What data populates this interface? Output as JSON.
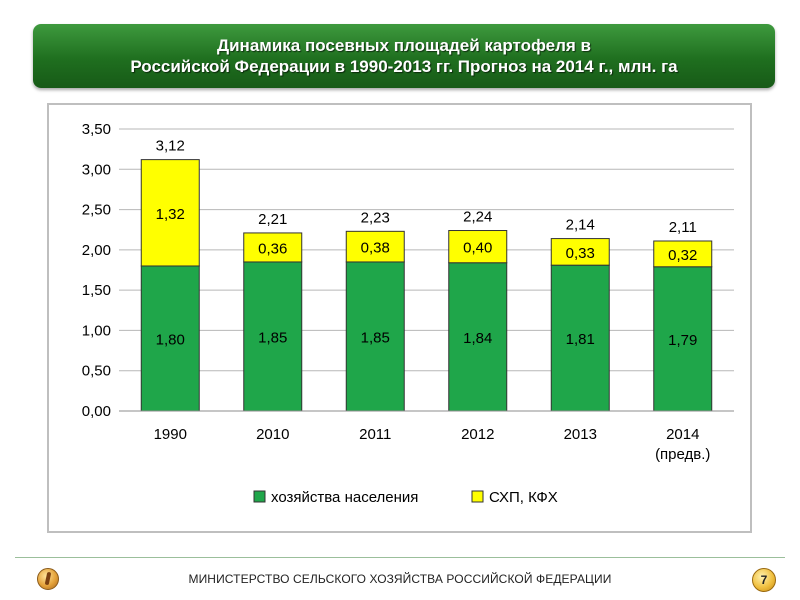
{
  "slide": {
    "title_line1": "Динамика посевных площадей картофеля в",
    "title_line2": "Российской Федерации в 1990-2013 гг. Прогноз на 2014 г., млн. га",
    "footer": "МИНИСТЕРСТВО СЕЛЬСКОГО ХОЗЯЙСТВА РОССИЙСКОЙ ФЕДЕРАЦИИ",
    "page_number": "7"
  },
  "chart_data": {
    "type": "bar",
    "stacked": true,
    "categories": [
      "1990",
      "2010",
      "2011",
      "2012",
      "2013",
      "2014\n(предв.)"
    ],
    "series": [
      {
        "name": "хозяйства населения",
        "color": "#1fa64a",
        "values": [
          1.8,
          1.85,
          1.85,
          1.84,
          1.81,
          1.79
        ],
        "labels": [
          "1,80",
          "1,85",
          "1,85",
          "1,84",
          "1,81",
          "1,79"
        ]
      },
      {
        "name": "СХП, КФХ",
        "color": "#ffff00",
        "values": [
          1.32,
          0.36,
          0.38,
          0.4,
          0.33,
          0.32
        ],
        "labels": [
          "1,32",
          "0,36",
          "0,38",
          "0,40",
          "0,33",
          "0,32"
        ]
      }
    ],
    "totals": [
      3.12,
      2.21,
      2.23,
      2.24,
      2.14,
      2.11
    ],
    "total_labels": [
      "3,12",
      "2,21",
      "2,23",
      "2,24",
      "2,14",
      "2,11"
    ],
    "ylim": [
      0,
      3.5
    ],
    "yticks": [
      0,
      0.5,
      1.0,
      1.5,
      2.0,
      2.5,
      3.0,
      3.5
    ],
    "ytick_labels": [
      "0,00",
      "0,50",
      "1,00",
      "1,50",
      "2,00",
      "2,50",
      "3,00",
      "3,50"
    ],
    "grid": true,
    "legend_position": "bottom",
    "xlabel": "",
    "ylabel": ""
  }
}
